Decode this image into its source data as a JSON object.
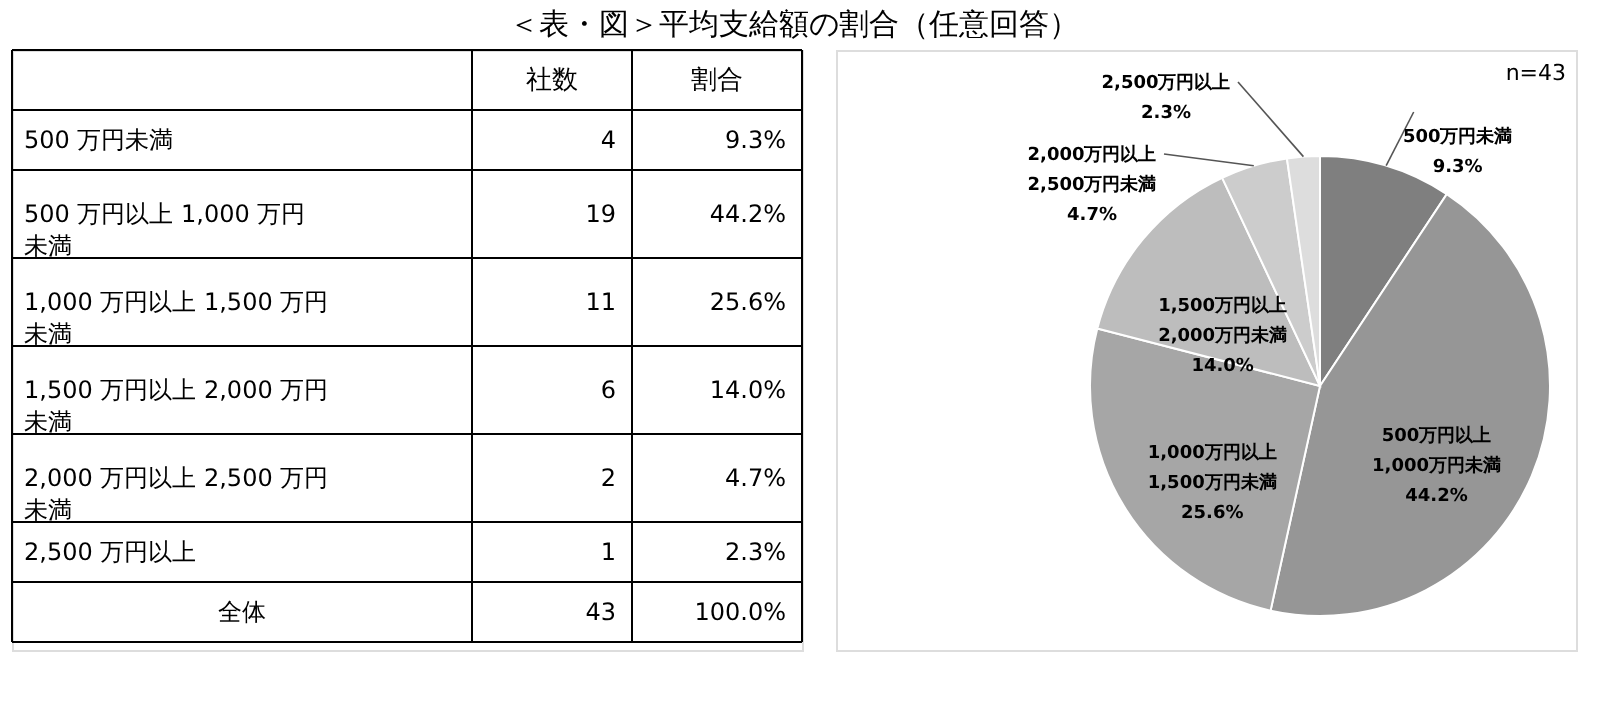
{
  "chart_data": [
    {
      "type": "other",
      "title": "＜表・図＞平均支給額の割合（任意回答）",
      "data_labels": true,
      "categories": [
        "500 万円未満",
        "500 万円以上 1,000 万円未満",
        "1,000 万円以上 1,500 万円未満",
        "1,500 万円以上 2,000 万円未満",
        "2,000 万円以上 2,500 万円未満",
        "2,500 万円以上",
        "全体"
      ],
      "series": [
        {
          "name": "社数",
          "values": [
            4,
            19,
            11,
            6,
            2,
            1,
            43
          ]
        },
        {
          "name": "割合",
          "values": [
            9.3,
            44.2,
            25.6,
            14.0,
            4.7,
            2.3,
            100.0
          ],
          "value_labels": [
            "9.3%",
            "44.2%",
            "25.6%",
            "14.0%",
            "4.7%",
            "2.3%",
            "100.0%"
          ]
        }
      ]
    },
    {
      "type": "pie",
      "categories": [
        "500万円未満",
        "500万円以上\n1,000万円未満",
        "1,000万円以上\n1,500万円未満",
        "1,500万円以上\n2,000万円未満",
        "2,000万円以上\n2,500万円未満",
        "2,500万円以上"
      ],
      "values": [
        9.3,
        44.2,
        25.6,
        14.0,
        4.7,
        2.3
      ],
      "value_labels": [
        "9.3%",
        "44.2%",
        "25.6%",
        "14.0%",
        "4.7%",
        "2.3%"
      ],
      "colors": [
        "#7f7f7f",
        "#969696",
        "#a6a6a6",
        "#bdbdbd",
        "#cccccc",
        "#dddddd"
      ],
      "annotations": [
        "n=43"
      ]
    }
  ]
}
